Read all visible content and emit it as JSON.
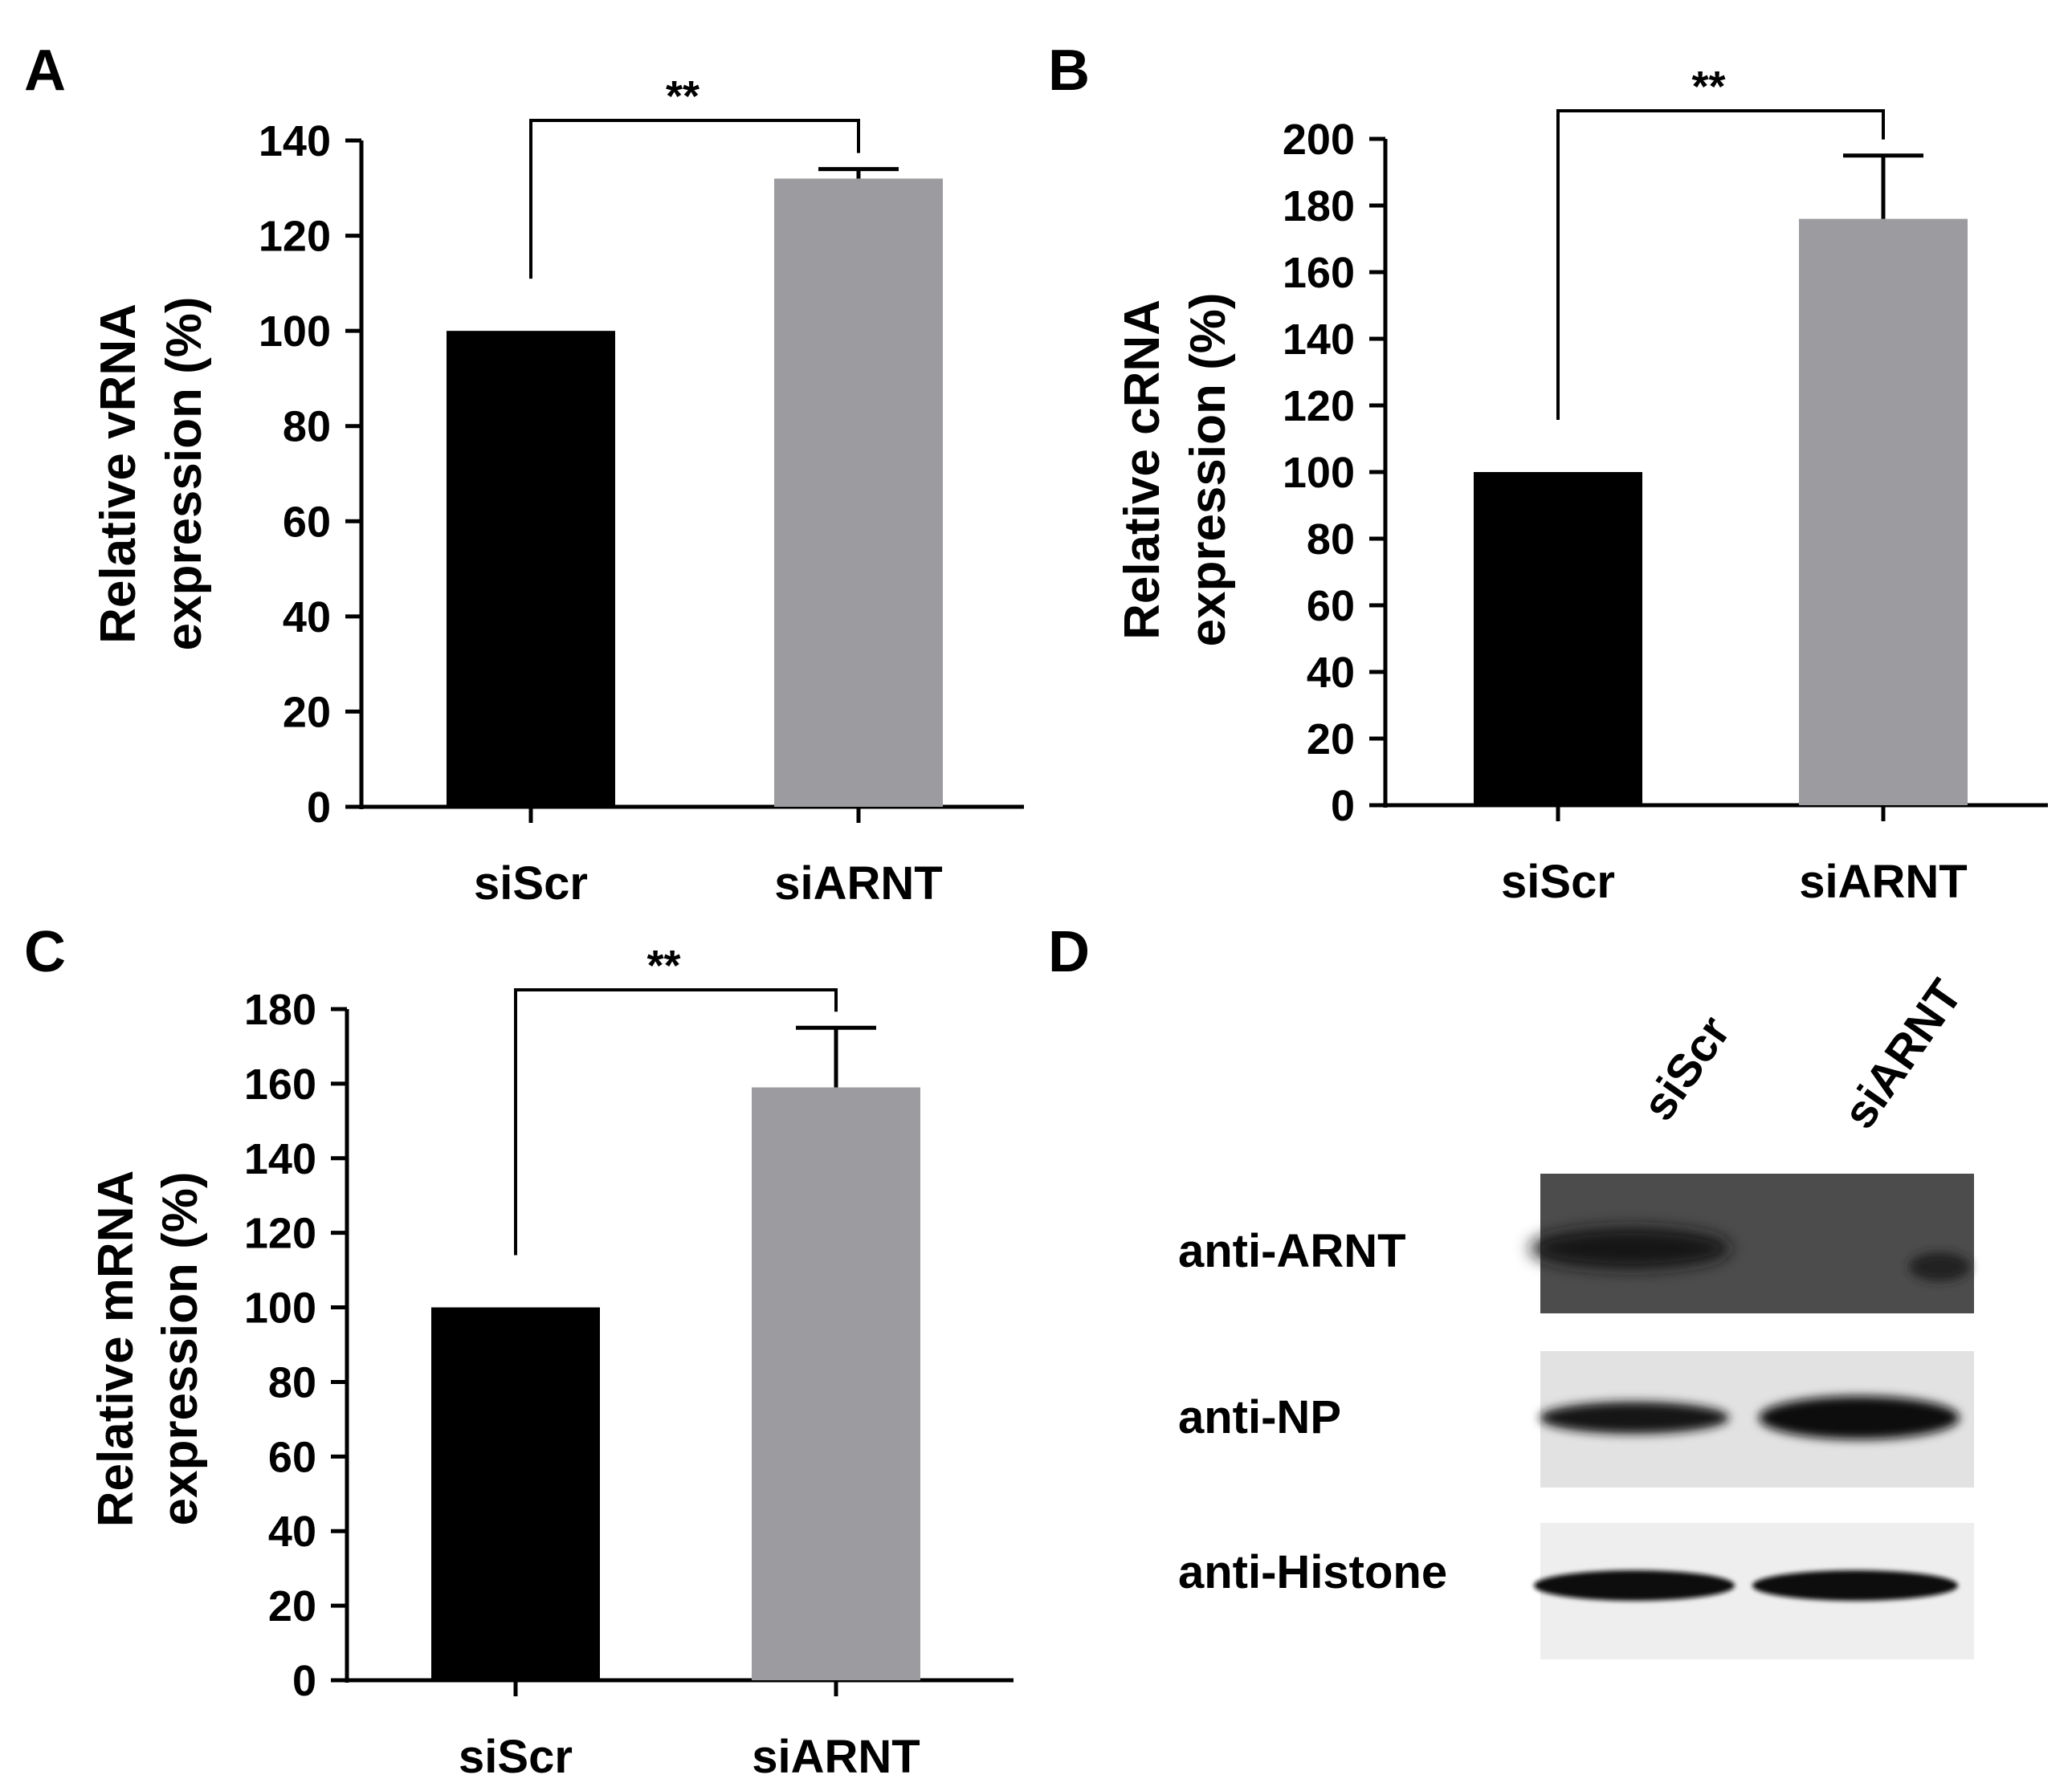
{
  "chart_data": [
    {
      "panel": "A",
      "type": "bar",
      "categories": [
        "siScr",
        "siARNT"
      ],
      "values": [
        100,
        132
      ],
      "errors": [
        null,
        2
      ],
      "ylabel_lines": [
        "Relative vRNA",
        "expression (%)"
      ],
      "ylim": [
        0,
        140
      ],
      "yticks": [
        0,
        20,
        40,
        60,
        80,
        100,
        120,
        140
      ],
      "significance": "**",
      "colors": [
        "#000000",
        "#9c9ca0"
      ],
      "grid": false
    },
    {
      "panel": "B",
      "type": "bar",
      "categories": [
        "siScr",
        "siARNT"
      ],
      "values": [
        100,
        176
      ],
      "errors": [
        null,
        19
      ],
      "ylabel_lines": [
        "Relative cRNA",
        "expression (%)"
      ],
      "ylim": [
        0,
        200
      ],
      "yticks": [
        0,
        20,
        40,
        60,
        80,
        100,
        120,
        140,
        160,
        180,
        200
      ],
      "significance": "**",
      "colors": [
        "#000000",
        "#9c9ca0"
      ],
      "grid": false
    },
    {
      "panel": "C",
      "type": "bar",
      "categories": [
        "siScr",
        "siARNT"
      ],
      "values": [
        100,
        159
      ],
      "errors": [
        null,
        16
      ],
      "ylabel_lines": [
        "Relative mRNA",
        "expression (%)"
      ],
      "ylim": [
        0,
        180
      ],
      "yticks": [
        0,
        20,
        40,
        60,
        80,
        100,
        120,
        140,
        160,
        180
      ],
      "significance": "**",
      "colors": [
        "#000000",
        "#9c9ca0"
      ],
      "grid": false
    }
  ],
  "blot": {
    "panel": "D",
    "lanes": [
      "siScr",
      "siARNT"
    ],
    "rows": [
      "anti-ARNT",
      "anti-NP",
      "anti-Histone"
    ]
  }
}
